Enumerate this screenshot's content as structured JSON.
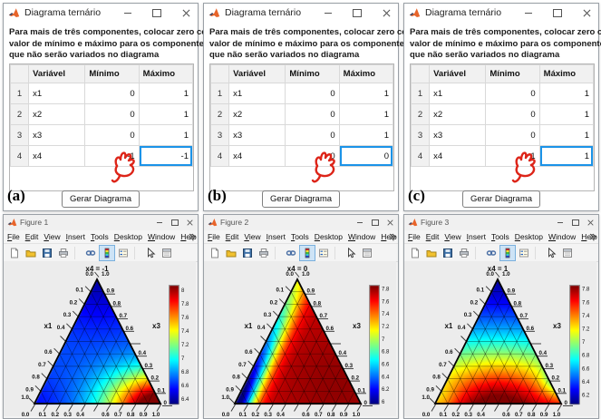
{
  "colors": {
    "selection_blue": "#1b93e8",
    "annotation_red": "#dd2418",
    "matlab_orange": "#e8642a",
    "chrome_gray": "#f0f0f0",
    "plot_bg": "#ececec"
  },
  "panels": [
    {
      "letter": "(a)",
      "dialog": {
        "title": "Diagrama ternário",
        "instruction_lines": [
          "Para mais de três componentes, colocar zero como",
          "valor de mínimo e máximo para os componentes",
          "que não serão variados no diagrama"
        ],
        "table": {
          "headers": [
            "",
            "Variável",
            "Mínimo",
            "Máximo"
          ],
          "rows": [
            [
              "1",
              "x1",
              "0",
              "1"
            ],
            [
              "2",
              "x2",
              "0",
              "1"
            ],
            [
              "3",
              "x3",
              "0",
              "1"
            ],
            [
              "4",
              "x4",
              "-1",
              "-1"
            ]
          ],
          "selected": {
            "row": 3,
            "col": 3
          }
        },
        "generate_button": "Gerar Diagrama"
      },
      "figure": {
        "window_title": "Figure 1"
      }
    },
    {
      "letter": "(b)",
      "dialog": {
        "title": "Diagrama ternário",
        "instruction_lines": [
          "Para mais de três componentes, colocar zero como",
          "valor de mínimo e máximo para os componentes",
          "que não serão variados no diagrama"
        ],
        "table": {
          "headers": [
            "",
            "Variável",
            "Mínimo",
            "Máximo"
          ],
          "rows": [
            [
              "1",
              "x1",
              "0",
              "1"
            ],
            [
              "2",
              "x2",
              "0",
              "1"
            ],
            [
              "3",
              "x3",
              "0",
              "1"
            ],
            [
              "4",
              "x4",
              "0",
              "0"
            ]
          ],
          "selected": {
            "row": 3,
            "col": 3
          }
        },
        "generate_button": "Gerar Diagrama"
      },
      "figure": {
        "window_title": "Figure 2"
      }
    },
    {
      "letter": "(c)",
      "dialog": {
        "title": "Diagrama ternário",
        "instruction_lines": [
          "Para mais de três componentes, colocar zero como",
          "valor de mínimo e máximo para os componentes",
          "que não serão variados no diagrama"
        ],
        "table": {
          "headers": [
            "",
            "Variável",
            "Mínimo",
            "Máximo"
          ],
          "rows": [
            [
              "1",
              "x1",
              "0",
              "1"
            ],
            [
              "2",
              "x2",
              "0",
              "1"
            ],
            [
              "3",
              "x3",
              "0",
              "1"
            ],
            [
              "4",
              "x4",
              "1",
              "1"
            ]
          ],
          "selected": {
            "row": 3,
            "col": 3
          }
        },
        "generate_button": "Gerar Diagrama"
      },
      "figure": {
        "window_title": "Figure 3"
      }
    }
  ],
  "figure_chrome": {
    "menus": [
      "File",
      "Edit",
      "View",
      "Insert",
      "Tools",
      "Desktop",
      "Window",
      "Help"
    ],
    "toolbar_groups": [
      [
        "new-figure",
        "open-file",
        "save-figure",
        "print-figure"
      ],
      [
        "link-plot",
        "insert-colorbar",
        "insert-legend"
      ],
      [
        "edit-plot",
        "property-inspector"
      ]
    ],
    "active_tool": "insert-colorbar"
  },
  "chart_data": [
    {
      "type": "heatmap",
      "subtype": "ternary",
      "title": "x4 = -1",
      "grid_step": 0.1,
      "axes": {
        "left": {
          "label": "x1",
          "apex_label": "0.0",
          "ticks": [
            [
              0.1,
              "0.1"
            ],
            [
              0.2,
              "0.2"
            ],
            [
              0.3,
              "0.3"
            ],
            [
              0.4,
              "0.4"
            ],
            [
              0.6,
              "0.6"
            ],
            [
              0.7,
              "0.7"
            ],
            [
              0.8,
              "0.8"
            ],
            [
              0.9,
              "0.9"
            ],
            [
              1,
              "1.0"
            ]
          ]
        },
        "right": {
          "label": "x3",
          "apex_label": "1.0",
          "ticks": [
            [
              0.1,
              "0.9"
            ],
            [
              0.2,
              "0.8"
            ],
            [
              0.3,
              "0.7"
            ],
            [
              0.4,
              "0.6"
            ],
            [
              0.6,
              "0.4"
            ],
            [
              0.7,
              "0.3"
            ],
            [
              0.8,
              "0.2"
            ],
            [
              0.9,
              "0.1"
            ],
            [
              1,
              "0"
            ]
          ]
        },
        "bottom": {
          "label": "x2",
          "ticks": [
            [
              0,
              "0.0"
            ],
            [
              0.1,
              "0.1"
            ],
            [
              0.2,
              "0.2"
            ],
            [
              0.3,
              "0.3"
            ],
            [
              0.4,
              "0.4"
            ],
            [
              0.6,
              "0.6"
            ],
            [
              0.7,
              "0.7"
            ],
            [
              0.8,
              "0.8"
            ],
            [
              0.9,
              "0.9"
            ],
            [
              1,
              "1.0"
            ]
          ]
        }
      },
      "colorbar": {
        "min": 6.33,
        "max": 8.07,
        "ticks": [
          8,
          7.8,
          7.6,
          7.4,
          7.2,
          7,
          6.8,
          6.6,
          6.4
        ]
      },
      "field": {
        "base": 6.68,
        "grad": null,
        "edges": [],
        "bumps": [
          {
            "u": 1.02,
            "w": 1.06,
            "amp": 1.55,
            "r": 0.3
          },
          {
            "u": 0.7,
            "w": 1.03,
            "amp": 0.5,
            "r": 0.3
          },
          {
            "u": 0.5,
            "w": -0.08,
            "amp": -0.3,
            "r": 0.4
          },
          {
            "u": -0.03,
            "w": 1.02,
            "amp": -0.12,
            "r": 0.25
          }
        ]
      },
      "summary": "mostly blue (~6.5-6.9), red hotspot at bottom-right corner (>8), yellow-green band near bottom edge x2~0.6-0.9"
    },
    {
      "type": "heatmap",
      "subtype": "ternary",
      "title": "x4 = 0",
      "grid_step": 0.1,
      "axes": {
        "left": {
          "label": "x1",
          "apex_label": "0.0",
          "ticks": [
            [
              0.1,
              "0.1"
            ],
            [
              0.2,
              "0.2"
            ],
            [
              0.3,
              "0.3"
            ],
            [
              0.4,
              "0.4"
            ],
            [
              0.6,
              "0.6"
            ],
            [
              0.7,
              "0.7"
            ],
            [
              0.8,
              "0.8"
            ],
            [
              0.9,
              "0.9"
            ],
            [
              1,
              "1.0"
            ]
          ]
        },
        "right": {
          "label": "x3",
          "apex_label": "1.0",
          "ticks": [
            [
              0.1,
              "0.9"
            ],
            [
              0.2,
              "0.8"
            ],
            [
              0.3,
              "0.7"
            ],
            [
              0.4,
              "0.6"
            ],
            [
              0.6,
              "0.4"
            ],
            [
              0.7,
              "0.3"
            ],
            [
              0.8,
              "0.2"
            ],
            [
              0.9,
              "0.1"
            ],
            [
              1,
              "0"
            ]
          ]
        },
        "bottom": {
          "label": "x2",
          "ticks": [
            [
              0,
              "0.0"
            ],
            [
              0.1,
              "0.1"
            ],
            [
              0.2,
              "0.2"
            ],
            [
              0.3,
              "0.3"
            ],
            [
              0.4,
              "0.4"
            ],
            [
              0.6,
              "0.6"
            ],
            [
              0.7,
              "0.7"
            ],
            [
              0.8,
              "0.8"
            ],
            [
              0.9,
              "0.9"
            ],
            [
              1,
              "1.0"
            ]
          ]
        }
      },
      "colorbar": {
        "min": 5.97,
        "max": 7.85,
        "ticks": [
          7.8,
          7.6,
          7.4,
          7.2,
          7,
          6.8,
          6.6,
          6.4,
          6.2,
          6
        ]
      },
      "field": {
        "base": 7.72,
        "grad": null,
        "edges": [
          {
            "edge": "left",
            "amp": -1.9,
            "r": 0.145,
            "t0": 0.3,
            "t1": 1.05
          }
        ],
        "bumps": [
          {
            "u": 0.8,
            "w": 0.85,
            "amp": 0.1,
            "r": 0.45
          }
        ]
      },
      "summary": "mostly deep red (~7.7-7.8), blue depression along left edge (x2~0) strongest toward bottom-left (~6), green transition band"
    },
    {
      "type": "heatmap",
      "subtype": "ternary",
      "title": "x4 = 1",
      "grid_step": 0.1,
      "axes": {
        "left": {
          "label": "x1",
          "apex_label": "0.0",
          "ticks": [
            [
              0.1,
              "0.1"
            ],
            [
              0.2,
              "0.2"
            ],
            [
              0.3,
              "0.3"
            ],
            [
              0.4,
              "0.4"
            ],
            [
              0.6,
              "0.6"
            ],
            [
              0.7,
              "0.7"
            ],
            [
              0.8,
              "0.8"
            ],
            [
              0.9,
              "0.9"
            ],
            [
              1,
              "1.0"
            ]
          ]
        },
        "right": {
          "label": "x3",
          "apex_label": "1.0",
          "ticks": [
            [
              0.1,
              "0.9"
            ],
            [
              0.2,
              "0.8"
            ],
            [
              0.3,
              "0.7"
            ],
            [
              0.4,
              "0.6"
            ],
            [
              0.6,
              "0.4"
            ],
            [
              0.7,
              "0.3"
            ],
            [
              0.8,
              "0.2"
            ],
            [
              0.9,
              "0.1"
            ],
            [
              1,
              "0"
            ]
          ]
        },
        "bottom": {
          "label": "x2",
          "ticks": [
            [
              0,
              "0.0"
            ],
            [
              0.1,
              "0.1"
            ],
            [
              0.2,
              "0.2"
            ],
            [
              0.3,
              "0.3"
            ],
            [
              0.4,
              "0.4"
            ],
            [
              0.6,
              "0.6"
            ],
            [
              0.7,
              "0.7"
            ],
            [
              0.8,
              "0.8"
            ],
            [
              0.9,
              "0.9"
            ],
            [
              1,
              "1.0"
            ]
          ]
        }
      },
      "colorbar": {
        "min": 6.07,
        "max": 7.85,
        "ticks": [
          7.8,
          7.6,
          7.4,
          7.2,
          7,
          6.8,
          6.6,
          6.4,
          6.2
        ]
      },
      "field": {
        "base": 0,
        "grad": {
          "from": 6.12,
          "to": 7.58,
          "power": 1.3
        },
        "edges": [],
        "bumps": [
          {
            "u": 0.5,
            "w": 0.95,
            "amp": 0.4,
            "r": 0.34
          },
          {
            "u": 0.99,
            "w": 0.8,
            "amp": -0.55,
            "r": 0.13
          },
          {
            "u": 0.02,
            "w": 0.98,
            "amp": -0.3,
            "r": 0.16
          }
        ]
      },
      "summary": "blue at apex (~6.1-6.4) grading through cyan/green to red bottom (~7.6), dark-red blob at bottom-center (~7.9), cyan notch on lower right edge"
    }
  ]
}
